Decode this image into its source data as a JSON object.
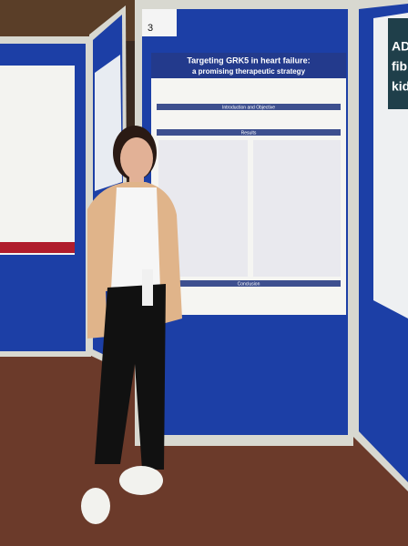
{
  "poster": {
    "number": "3",
    "title_line1": "Targeting GRK5 in heart failure:",
    "title_line2": "a promising therapeutic strategy",
    "section_intro": "Introduction and Objective",
    "section_results": "Results",
    "section_conclusion": "Conclusion"
  },
  "right_poster": {
    "line1": "AD",
    "line2": "fib",
    "line3": "kid"
  }
}
